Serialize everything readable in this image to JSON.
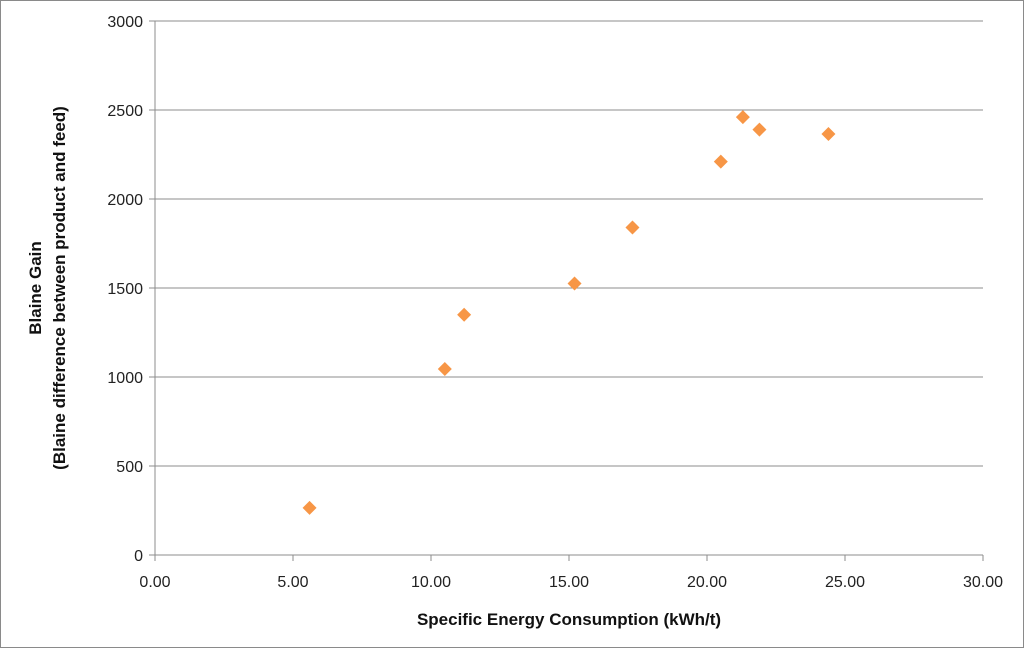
{
  "chart_data": {
    "type": "scatter",
    "title": "",
    "xlabel": "Specific Energy Consumption (kWh/t)",
    "ylabel_line1": "Blaine Gain",
    "ylabel_line2": "(Blaine difference between product and feed)",
    "xlim": [
      0,
      30
    ],
    "ylim": [
      0,
      3000
    ],
    "x_ticks": [
      "0.00",
      "5.00",
      "10.00",
      "15.00",
      "20.00",
      "25.00",
      "30.00"
    ],
    "y_ticks": [
      "0",
      "500",
      "1000",
      "1500",
      "2000",
      "2500",
      "3000"
    ],
    "grid": "horizontal",
    "legend": "none",
    "marker": "diamond",
    "marker_color": "#F79646",
    "series": [
      {
        "x": [
          5.6,
          10.5,
          11.2,
          15.2,
          17.3,
          20.5,
          21.3,
          21.9,
          24.4
        ],
        "y": [
          265,
          1045,
          1350,
          1525,
          1840,
          2210,
          2460,
          2390,
          2365
        ]
      }
    ]
  }
}
